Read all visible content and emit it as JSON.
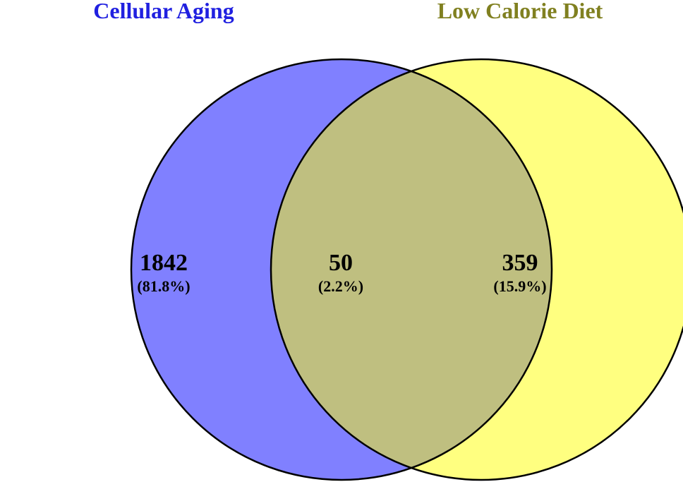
{
  "sets": [
    {
      "name": "Cellular Aging",
      "color": "#8080ff",
      "title_color": "#2020e0"
    },
    {
      "name": "Low Calorie Diet",
      "color": "#ffff80",
      "title_color": "#808020"
    }
  ],
  "intersection_color": "#bfbf80",
  "regions": {
    "left_only": {
      "count": "1842",
      "percent": "(81.8%)"
    },
    "both": {
      "count": "50",
      "percent": "(2.2%)"
    },
    "right_only": {
      "count": "359",
      "percent": "(15.9%)"
    }
  }
}
